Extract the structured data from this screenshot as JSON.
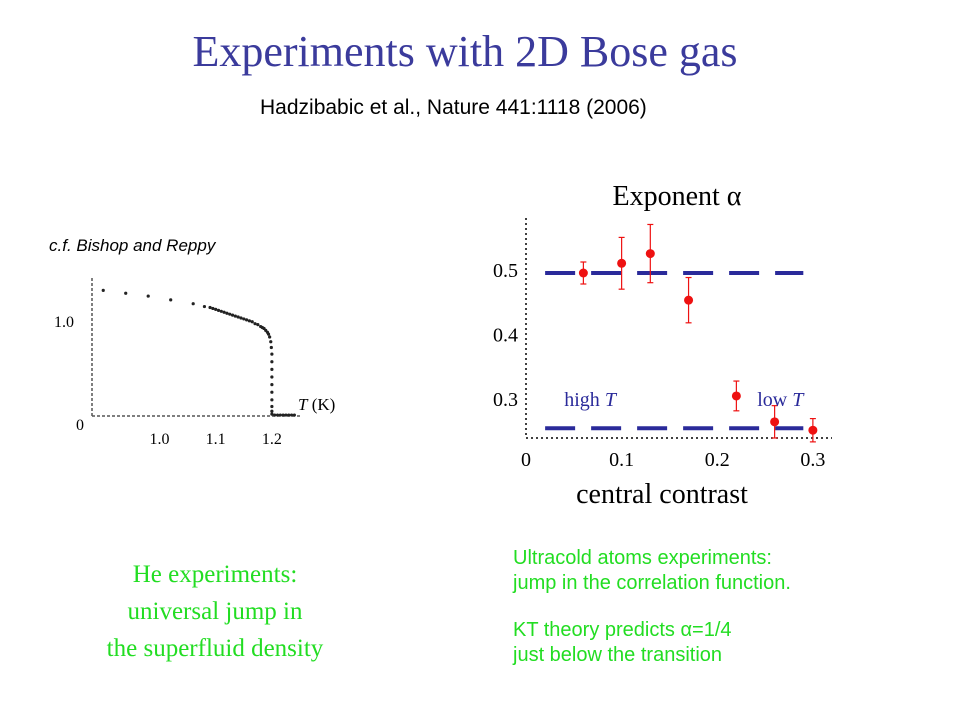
{
  "slide": {
    "title": "Experiments with 2D Bose gas",
    "citation": "Hadzibabic et al., Nature 441:1118 (2006)",
    "left_note": "c.f. Bishop and Reppy",
    "he_caption": [
      "He experiments:",
      "universal jump in",
      "the superfluid density"
    ],
    "ua_caption_1": [
      "Ultracold atoms experiments:",
      "jump in the correlation function."
    ],
    "ua_caption_2": [
      "KT theory predicts α=1/4",
      "just below the transition"
    ]
  },
  "colors": {
    "title": "#3b3b9c",
    "green_text": "#22dd22",
    "points": "#ee1111",
    "dash_lines": "#2a2a9a",
    "axis": "#000000"
  },
  "chart_data": [
    {
      "type": "scatter",
      "title": "",
      "xlabel": "T (K)",
      "ylabel": "",
      "x_ticks": [
        "1.0",
        "1.1",
        "1.2"
      ],
      "y_ticks": [
        "0",
        "1.0"
      ],
      "xlim": [
        0.88,
        1.25
      ],
      "ylim": [
        0,
        1.45
      ],
      "grid": false,
      "series": [
        {
          "x": [
            0.9,
            0.94,
            0.98,
            1.02,
            1.06,
            1.08,
            1.09,
            1.095,
            1.1,
            1.105,
            1.11,
            1.115,
            1.12,
            1.125,
            1.13,
            1.135,
            1.14,
            1.145,
            1.15,
            1.155,
            1.16,
            1.165,
            1.17,
            1.175,
            1.18,
            1.183,
            1.186,
            1.189,
            1.192,
            1.194,
            1.196,
            1.198,
            1.199,
            1.2,
            1.2,
            1.2,
            1.2,
            1.2,
            1.2,
            1.2,
            1.2,
            1.2,
            1.2,
            1.205,
            1.21,
            1.215,
            1.22,
            1.225,
            1.23,
            1.235,
            1.24
          ],
          "y": [
            1.32,
            1.29,
            1.26,
            1.22,
            1.18,
            1.15,
            1.14,
            1.13,
            1.12,
            1.11,
            1.1,
            1.09,
            1.08,
            1.07,
            1.06,
            1.05,
            1.04,
            1.03,
            1.02,
            1.01,
            1.0,
            0.99,
            0.97,
            0.96,
            0.94,
            0.93,
            0.92,
            0.9,
            0.88,
            0.86,
            0.83,
            0.78,
            0.72,
            0.65,
            0.57,
            0.49,
            0.41,
            0.33,
            0.25,
            0.17,
            0.1,
            0.05,
            0.02,
            0.01,
            0.01,
            0.01,
            0.01,
            0.01,
            0.01,
            0.01,
            0.01
          ]
        }
      ]
    },
    {
      "type": "scatter",
      "title": "Exponent α",
      "xlabel": "central contrast",
      "ylabel": "",
      "x_ticks": [
        "0",
        "0.1",
        "0.2",
        "0.3"
      ],
      "y_ticks": [
        "0.3",
        "0.4",
        "0.5"
      ],
      "xlim": [
        0,
        0.32
      ],
      "ylim": [
        0.24,
        0.58
      ],
      "grid": false,
      "series": [
        {
          "x": [
            0.06,
            0.1,
            0.13,
            0.17,
            0.22,
            0.26,
            0.3
          ],
          "y": [
            0.495,
            0.51,
            0.525,
            0.453,
            0.305,
            0.265,
            0.252
          ],
          "yerr": [
            0.017,
            0.04,
            0.045,
            0.035,
            0.023,
            0.025,
            0.018
          ]
        }
      ],
      "reference_lines": [
        {
          "y": 0.495,
          "x_from": 0.02,
          "x_to": 0.29
        },
        {
          "y": 0.255,
          "x_from": 0.02,
          "x_to": 0.29
        }
      ],
      "annotations": [
        {
          "text": "high T",
          "x": 0.04,
          "y": 0.3
        },
        {
          "text": "low T",
          "x": 0.29,
          "y": 0.3
        }
      ]
    }
  ]
}
